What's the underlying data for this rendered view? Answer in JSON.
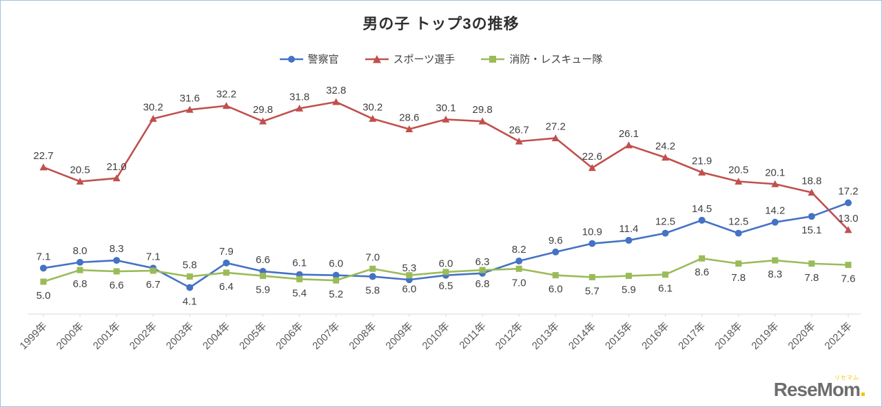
{
  "frame": {
    "border_color": "#9dc3e6",
    "background": "#ffffff"
  },
  "chart_data": {
    "type": "line",
    "title": "男の子 トップ3の推移",
    "x": [
      "1999年",
      "2000年",
      "2001年",
      "2002年",
      "2003年",
      "2004年",
      "2005年",
      "2006年",
      "2007年",
      "2008年",
      "2009年",
      "2010年",
      "2011年",
      "2012年",
      "2013年",
      "2014年",
      "2015年",
      "2016年",
      "2017年",
      "2018年",
      "2019年",
      "2020年",
      "2021年"
    ],
    "series": [
      {
        "name": "警察官",
        "color": "#4472c4",
        "marker": "circle",
        "values": [
          7.1,
          8.0,
          8.3,
          7.1,
          4.1,
          7.9,
          6.6,
          6.1,
          6.0,
          5.8,
          5.3,
          6.0,
          6.3,
          8.2,
          9.6,
          10.9,
          11.4,
          12.5,
          14.5,
          12.5,
          14.2,
          15.1,
          17.2
        ]
      },
      {
        "name": "スポーツ選手",
        "color": "#c0504d",
        "marker": "triangle",
        "values": [
          22.7,
          20.5,
          21.0,
          30.2,
          31.6,
          32.2,
          29.8,
          31.8,
          32.8,
          30.2,
          28.6,
          30.1,
          29.8,
          26.7,
          27.2,
          22.6,
          26.1,
          24.2,
          21.9,
          20.5,
          20.1,
          18.8,
          13.0
        ]
      },
      {
        "name": "消防・レスキュー隊",
        "color": "#9bbb59",
        "marker": "square",
        "values": [
          5.0,
          6.8,
          6.6,
          6.7,
          5.8,
          6.4,
          5.9,
          5.4,
          5.2,
          7.0,
          6.0,
          6.5,
          6.8,
          7.0,
          6.0,
          5.7,
          5.9,
          6.1,
          8.6,
          7.8,
          8.3,
          7.8,
          7.6
        ]
      }
    ],
    "ylim": [
      0,
      35
    ],
    "grid": false,
    "legend_position": "top",
    "data_labels_shown": true,
    "label_color": "#3f3f3f",
    "axis_color": "#d9d9d9",
    "tick_label_color": "#595959"
  },
  "logo": {
    "text": "ReseMom",
    "ruby": "リセマム",
    "text_color": "#6d6d6d",
    "accent_color": "#f4c400"
  }
}
